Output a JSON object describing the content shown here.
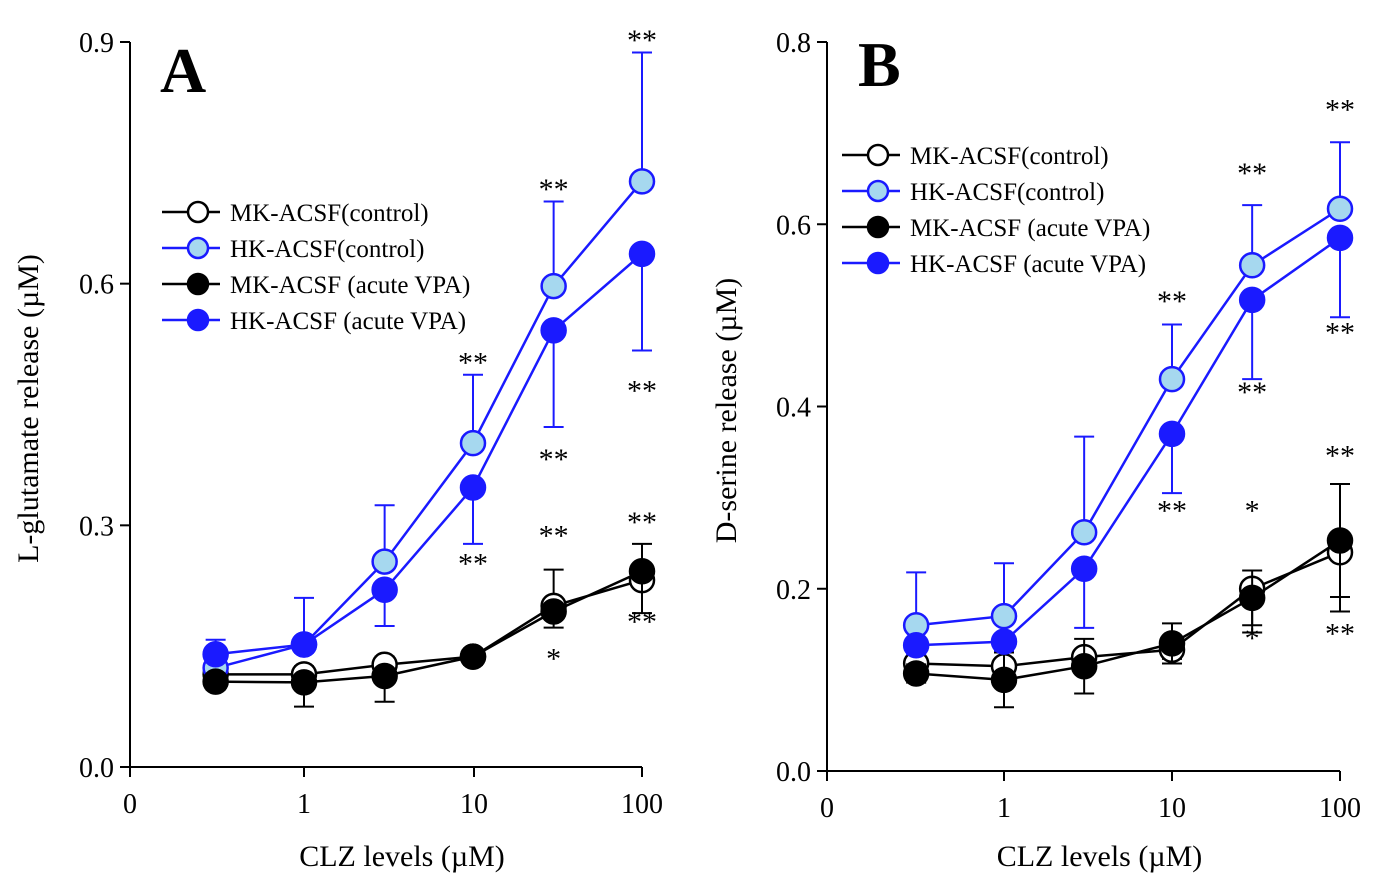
{
  "chart_data": [
    {
      "panel": "A",
      "type": "line",
      "xlabel": "CLZ levels (µM)",
      "ylabel": "L-glutamate release (µM)",
      "x_categories": [
        "0",
        "1",
        "10",
        "100"
      ],
      "x_scale": "log",
      "yticks": [
        "0.0",
        "0.3",
        "0.6",
        "0.9"
      ],
      "ylim": [
        0,
        0.9
      ],
      "legend": [
        "MK-ACSF(control)",
        "HK-ACSF(control)",
        "MK-ACSF (acute VPA)",
        "HK-ACSF (acute VPA)"
      ],
      "x": [
        0.3,
        1,
        3,
        10,
        30,
        100
      ],
      "series": [
        {
          "name": "MK-ACSF(control)",
          "color": "#000000",
          "fill": "#ffffff",
          "values": [
            0.115,
            0.115,
            0.127,
            0.137,
            0.2,
            0.232
          ],
          "err": [
            0.01,
            0.01,
            0.01,
            0.01,
            0.045,
            0.045
          ],
          "err_dir": "up"
        },
        {
          "name": "HK-ACSF(control)",
          "color": "#1a1aff",
          "fill": "#a6d8ef",
          "values": [
            0.123,
            0.152,
            0.255,
            0.402,
            0.597,
            0.727
          ],
          "err": [
            0.035,
            0.058,
            0.07,
            0.085,
            0.105,
            0.16
          ],
          "err_dir": "up"
        },
        {
          "name": "MK-ACSF (acute VPA)",
          "color": "#000000",
          "fill": "#000000",
          "values": [
            0.106,
            0.105,
            0.113,
            0.137,
            0.193,
            0.243
          ],
          "err": [
            0.01,
            0.03,
            0.032,
            0.01,
            0.02,
            0.052
          ],
          "err_dir": "down"
        },
        {
          "name": "HK-ACSF (acute VPA)",
          "color": "#1a1aff",
          "fill": "#1a1aff",
          "values": [
            0.14,
            0.152,
            0.22,
            0.347,
            0.542,
            0.637
          ],
          "err": [
            0.01,
            0.01,
            0.045,
            0.07,
            0.12,
            0.12
          ],
          "err_dir": "down"
        }
      ],
      "annotations": [
        {
          "text": "**",
          "x": 10,
          "y": 0.49
        },
        {
          "text": "**",
          "x": 10,
          "y": 0.24
        },
        {
          "text": "**",
          "x": 30,
          "y": 0.705
        },
        {
          "text": "**",
          "x": 30,
          "y": 0.37
        },
        {
          "text": "**",
          "x": 30,
          "y": 0.275
        },
        {
          "text": "*",
          "x": 30,
          "y": 0.122
        },
        {
          "text": "**",
          "x": 100,
          "y": 0.89
        },
        {
          "text": "**",
          "x": 100,
          "y": 0.455
        },
        {
          "text": "**",
          "x": 100,
          "y": 0.292
        },
        {
          "text": "**",
          "x": 100,
          "y": 0.168
        }
      ]
    },
    {
      "panel": "B",
      "type": "line",
      "xlabel": "CLZ levels (µM)",
      "ylabel": "D-serine release (µM)",
      "x_categories": [
        "0",
        "1",
        "10",
        "100"
      ],
      "x_scale": "log",
      "yticks": [
        "0.0",
        "0.2",
        "0.4",
        "0.6",
        "0.8"
      ],
      "ylim": [
        0,
        0.8
      ],
      "legend": [
        "MK-ACSF(control)",
        "HK-ACSF(control)",
        "MK-ACSF (acute VPA)",
        "HK-ACSF (acute VPA)"
      ],
      "x": [
        0.3,
        1,
        3,
        10,
        30,
        100
      ],
      "series": [
        {
          "name": "MK-ACSF(control)",
          "color": "#000000",
          "fill": "#ffffff",
          "values": [
            0.118,
            0.115,
            0.125,
            0.133,
            0.2,
            0.24
          ],
          "err": [
            0.01,
            0.01,
            0.01,
            0.01,
            0.048,
            0.065
          ],
          "err_dir": "down"
        },
        {
          "name": "HK-ACSF(control)",
          "color": "#1a1aff",
          "fill": "#a6d8ef",
          "values": [
            0.16,
            0.17,
            0.262,
            0.43,
            0.555,
            0.617
          ],
          "err": [
            0.058,
            0.058,
            0.105,
            0.06,
            0.066,
            0.073
          ],
          "err_dir": "up"
        },
        {
          "name": "MK-ACSF (acute VPA)",
          "color": "#000000",
          "fill": "#000000",
          "values": [
            0.107,
            0.1,
            0.115,
            0.14,
            0.19,
            0.253
          ],
          "err": [
            0.01,
            0.03,
            0.03,
            0.022,
            0.03,
            0.062
          ],
          "err_dir": "both"
        },
        {
          "name": "HK-ACSF (acute VPA)",
          "color": "#1a1aff",
          "fill": "#1a1aff",
          "values": [
            0.138,
            0.142,
            0.222,
            0.37,
            0.517,
            0.585
          ],
          "err": [
            0.01,
            0.01,
            0.065,
            0.065,
            0.087,
            0.087
          ],
          "err_dir": "down"
        }
      ],
      "annotations": [
        {
          "text": "**",
          "x": 10,
          "y": 0.505
        },
        {
          "text": "**",
          "x": 10,
          "y": 0.275
        },
        {
          "text": "**",
          "x": 30,
          "y": 0.645
        },
        {
          "text": "**",
          "x": 30,
          "y": 0.405
        },
        {
          "text": "*",
          "x": 30,
          "y": 0.275
        },
        {
          "text": "*",
          "x": 30,
          "y": 0.135
        },
        {
          "text": "**",
          "x": 100,
          "y": 0.715
        },
        {
          "text": "**",
          "x": 100,
          "y": 0.47
        },
        {
          "text": "**",
          "x": 100,
          "y": 0.335
        },
        {
          "text": "**",
          "x": 100,
          "y": 0.14
        }
      ]
    }
  ]
}
